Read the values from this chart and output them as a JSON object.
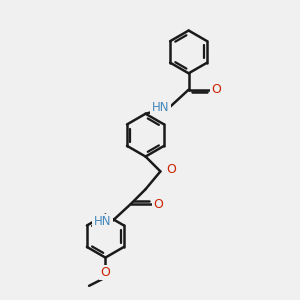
{
  "bg_color": "#f0f0f0",
  "bond_color": "#1a1a1a",
  "N_color": "#4488bb",
  "O_color": "#cc2200",
  "lw": 1.8,
  "figsize": [
    3.0,
    3.0
  ],
  "dpi": 100,
  "ring_r": 0.72,
  "xlim": [
    0,
    10
  ],
  "ylim": [
    0,
    10
  ]
}
